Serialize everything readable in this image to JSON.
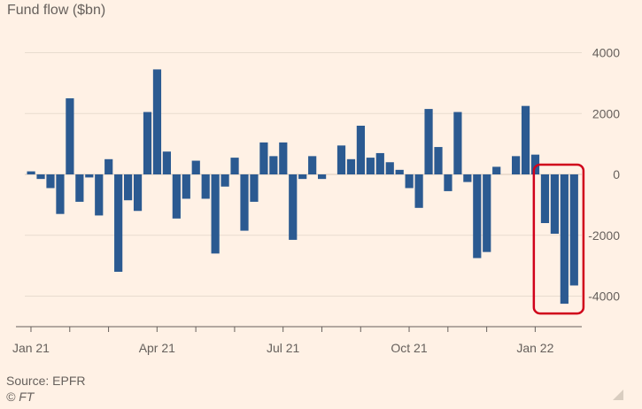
{
  "title": "Fund flow ($bn)",
  "source": "Source: EPFR",
  "copyright": "© FT",
  "colors": {
    "bar": "#2b5a91",
    "highlight": "#d0021b",
    "grid": "#e8dccf",
    "axis": "#66605c"
  },
  "chart_data": {
    "type": "bar",
    "title": "Fund flow ($bn)",
    "xlabel": "",
    "ylabel": "",
    "ylim": [
      -5000,
      4000
    ],
    "yticks": [
      4000,
      2000,
      0,
      -2000,
      -4000
    ],
    "grid": true,
    "x_tick_labels": [
      {
        "label": "Jan 21",
        "week": 0.5
      },
      {
        "label": "Apr 21",
        "week": 13.5
      },
      {
        "label": "Jul 21",
        "week": 26.5
      },
      {
        "label": "Oct 21",
        "week": 39.5
      },
      {
        "label": "Jan 22",
        "week": 52.5
      }
    ],
    "x_minor_ticks": [
      0.5,
      4.5,
      8.5,
      13.5,
      17.5,
      21.5,
      26.5,
      30.5,
      34.5,
      39.5,
      43.5,
      47.5,
      52.5
    ],
    "highlight_weeks": [
      53,
      56
    ],
    "values": [
      100,
      -150,
      -450,
      -1300,
      2500,
      -900,
      -100,
      -1350,
      500,
      -3200,
      -850,
      -1200,
      2050,
      3450,
      750,
      -1450,
      -800,
      450,
      -800,
      -2600,
      -400,
      550,
      -1850,
      -900,
      1050,
      600,
      1050,
      -2150,
      -150,
      600,
      -150,
      0,
      950,
      500,
      1600,
      550,
      700,
      400,
      150,
      -450,
      -1100,
      2150,
      900,
      -550,
      2050,
      -250,
      -2750,
      -2550,
      250,
      0,
      600,
      2250,
      650,
      -1600,
      -1950,
      -4250,
      -3650
    ]
  }
}
